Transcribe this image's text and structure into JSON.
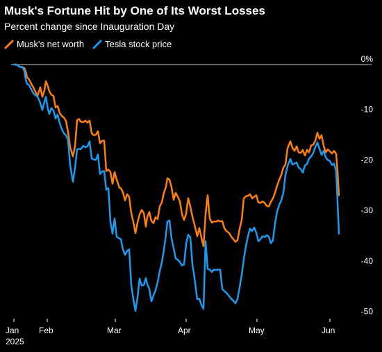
{
  "chart_data": {
    "type": "line",
    "title": "Musk's Fortune Hit by One of Its Worst Losses",
    "subtitle": "Percent change since Inauguration Day",
    "xlabel": "",
    "ylabel": "",
    "x_ticks": [
      "Jan\n2025",
      "Feb",
      "Mar",
      "Apr",
      "May",
      "Jun"
    ],
    "y_ticks": [
      "0%",
      "-10",
      "-20",
      "-30",
      "-40",
      "-50"
    ],
    "y_tick_values": [
      0,
      -10,
      -20,
      -30,
      -40,
      -50
    ],
    "ylim": [
      -52,
      2
    ],
    "grid": false,
    "legend_position": "top-left",
    "series": [
      {
        "name": "Musk's net worth",
        "color": "#ff7f0e",
        "points": [
          [
            20,
            0
          ],
          [
            23,
            0
          ],
          [
            26,
            -0.2
          ],
          [
            29,
            -0.5
          ],
          [
            32,
            -0.5
          ],
          [
            35,
            -0.7
          ],
          [
            37,
            -1.4
          ],
          [
            39,
            -2.5
          ],
          [
            42,
            -3
          ],
          [
            45,
            -3.8
          ],
          [
            48,
            -4.5
          ],
          [
            51,
            -5.4
          ],
          [
            54,
            -6.2
          ],
          [
            58,
            -4.5
          ],
          [
            61,
            -6.4
          ],
          [
            64,
            -5.1
          ],
          [
            66,
            -3.3
          ],
          [
            69,
            -4.3
          ],
          [
            71,
            -5.3
          ],
          [
            74,
            -6
          ],
          [
            77,
            -6.2
          ],
          [
            80,
            -8.5
          ],
          [
            83,
            -8.2
          ],
          [
            86,
            -9.6
          ],
          [
            89,
            -10.2
          ],
          [
            92,
            -10.5
          ],
          [
            95,
            -11.2
          ],
          [
            98,
            -13.4
          ],
          [
            101,
            -16.4
          ],
          [
            105,
            -18.2
          ],
          [
            108,
            -16.2
          ],
          [
            111,
            -11
          ],
          [
            114,
            -10.8
          ],
          [
            116,
            -11.3
          ],
          [
            120,
            -11.4
          ],
          [
            123,
            -11.1
          ],
          [
            126,
            -11.5
          ],
          [
            129,
            -11.1
          ],
          [
            132,
            -13.6
          ],
          [
            135,
            -14
          ],
          [
            138,
            -13.9
          ],
          [
            141,
            -13.2
          ],
          [
            144,
            -15.6
          ],
          [
            147,
            -15.1
          ],
          [
            150,
            -15.1
          ],
          [
            153,
            -21.1
          ],
          [
            156,
            -20.8
          ],
          [
            159,
            -21.3
          ],
          [
            162,
            -23.6
          ],
          [
            165,
            -21.3
          ],
          [
            168,
            -22.8
          ],
          [
            172,
            -24.4
          ],
          [
            174,
            -24.5
          ],
          [
            177,
            -25.3
          ],
          [
            180,
            -26.9
          ],
          [
            183,
            -25.7
          ],
          [
            186,
            -26.2
          ],
          [
            189,
            -29.4
          ],
          [
            192,
            -31.2
          ],
          [
            195,
            -33.4
          ],
          [
            198,
            -31.3
          ],
          [
            201,
            -29.7
          ],
          [
            204,
            -28.8
          ],
          [
            207,
            -29.4
          ],
          [
            210,
            -32.1
          ],
          [
            212,
            -30.2
          ],
          [
            215,
            -29.2
          ],
          [
            218,
            -31
          ],
          [
            221,
            -31.4
          ],
          [
            224,
            -30.2
          ],
          [
            227,
            -30.6
          ],
          [
            230,
            -28.1
          ],
          [
            233,
            -27.3
          ],
          [
            236,
            -25.4
          ],
          [
            239,
            -24.2
          ],
          [
            241,
            -22.5
          ],
          [
            244,
            -22.8
          ],
          [
            247,
            -24.3
          ],
          [
            250,
            -26.8
          ],
          [
            253,
            -25.4
          ],
          [
            256,
            -26.2
          ],
          [
            259,
            -27.1
          ],
          [
            262,
            -29.6
          ],
          [
            265,
            -30.8
          ],
          [
            268,
            -29.5
          ],
          [
            271,
            -26.5
          ],
          [
            274,
            -28.1
          ],
          [
            277,
            -30.1
          ],
          [
            280,
            -31.7
          ],
          [
            284,
            -34
          ],
          [
            287,
            -32.4
          ],
          [
            290,
            -34.3
          ],
          [
            293,
            -36
          ],
          [
            296,
            -29.6
          ],
          [
            299,
            -25.9
          ],
          [
            302,
            -30.5
          ],
          [
            305,
            -31.3
          ],
          [
            308,
            -31.1
          ],
          [
            311,
            -31.1
          ],
          [
            314,
            -30.9
          ],
          [
            317,
            -31.1
          ],
          [
            320,
            -31
          ],
          [
            323,
            -32.4
          ],
          [
            326,
            -33
          ],
          [
            330,
            -33.4
          ],
          [
            333,
            -34.1
          ],
          [
            336,
            -34.6
          ],
          [
            339,
            -35.1
          ],
          [
            342,
            -34.8
          ],
          [
            345,
            -32.5
          ],
          [
            348,
            -30.8
          ],
          [
            351,
            -26.5
          ],
          [
            354,
            -26.1
          ],
          [
            357,
            -26
          ],
          [
            360,
            -25.7
          ],
          [
            363,
            -26.5
          ],
          [
            366,
            -26.2
          ],
          [
            369,
            -25.9
          ],
          [
            372,
            -27.3
          ],
          [
            375,
            -27.4
          ],
          [
            378,
            -27.1
          ],
          [
            381,
            -27.4
          ],
          [
            384,
            -28
          ],
          [
            387,
            -28.1
          ],
          [
            390,
            -27.2
          ],
          [
            393,
            -26.5
          ],
          [
            396,
            -25.4
          ],
          [
            399,
            -24
          ],
          [
            402,
            -22.8
          ],
          [
            405,
            -21.9
          ],
          [
            408,
            -20.4
          ],
          [
            411,
            -19.8
          ],
          [
            414,
            -16.6
          ],
          [
            418,
            -15.2
          ],
          [
            421,
            -16.5
          ],
          [
            424,
            -17.1
          ],
          [
            427,
            -16.2
          ],
          [
            430,
            -17.4
          ],
          [
            433,
            -17.5
          ],
          [
            436,
            -16.9
          ],
          [
            439,
            -18
          ],
          [
            442,
            -16.9
          ],
          [
            445,
            -17.4
          ],
          [
            448,
            -16
          ],
          [
            451,
            -15.9
          ],
          [
            454,
            -15.1
          ],
          [
            457,
            -13.5
          ],
          [
            460,
            -14.7
          ],
          [
            463,
            -14
          ],
          [
            466,
            -16.1
          ],
          [
            469,
            -17.4
          ],
          [
            472,
            -16.8
          ],
          [
            475,
            -17.2
          ],
          [
            478,
            -17.6
          ],
          [
            481,
            -17.1
          ],
          [
            484,
            -17.7
          ],
          [
            486,
            -21.2
          ],
          [
            488,
            -25.9
          ]
        ]
      },
      {
        "name": "Tesla stock price",
        "color": "#1a9bf0",
        "points": [
          [
            20,
            0
          ],
          [
            23,
            0
          ],
          [
            26,
            -0.2
          ],
          [
            29,
            -0.5
          ],
          [
            32,
            -0.5
          ],
          [
            35,
            -1.2
          ],
          [
            37,
            -2.9
          ],
          [
            39,
            -3.8
          ],
          [
            42,
            -4.1
          ],
          [
            45,
            -4.9
          ],
          [
            48,
            -5.7
          ],
          [
            51,
            -6.1
          ],
          [
            54,
            -6.3
          ],
          [
            58,
            -7.6
          ],
          [
            61,
            -9
          ],
          [
            64,
            -7.4
          ],
          [
            66,
            -6.4
          ],
          [
            69,
            -8.8
          ],
          [
            71,
            -9.8
          ],
          [
            74,
            -8.6
          ],
          [
            77,
            -9.1
          ],
          [
            80,
            -10.7
          ],
          [
            83,
            -9.9
          ],
          [
            86,
            -11.6
          ],
          [
            89,
            -12.8
          ],
          [
            92,
            -13.6
          ],
          [
            95,
            -14
          ],
          [
            98,
            -15
          ],
          [
            101,
            -19.9
          ],
          [
            105,
            -23.2
          ],
          [
            108,
            -20.5
          ],
          [
            111,
            -16.8
          ],
          [
            114,
            -16.7
          ],
          [
            116,
            -16.8
          ],
          [
            120,
            -16.1
          ],
          [
            123,
            -16.4
          ],
          [
            126,
            -16.2
          ],
          [
            129,
            -15.2
          ],
          [
            132,
            -18.6
          ],
          [
            135,
            -18.8
          ],
          [
            138,
            -18.9
          ],
          [
            141,
            -17.8
          ],
          [
            144,
            -21.7
          ],
          [
            147,
            -21.2
          ],
          [
            150,
            -21.1
          ],
          [
            153,
            -24.8
          ],
          [
            156,
            -24.5
          ],
          [
            159,
            -31.1
          ],
          [
            162,
            -33.5
          ],
          [
            165,
            -30.5
          ],
          [
            168,
            -34.1
          ],
          [
            172,
            -34.5
          ],
          [
            174,
            -34.6
          ],
          [
            177,
            -36.6
          ],
          [
            180,
            -37.7
          ],
          [
            183,
            -36.9
          ],
          [
            186,
            -36.6
          ],
          [
            189,
            -43.7
          ],
          [
            192,
            -46.5
          ],
          [
            195,
            -48.8
          ],
          [
            198,
            -46.1
          ],
          [
            201,
            -42.4
          ],
          [
            204,
            -43.8
          ],
          [
            207,
            -43.7
          ],
          [
            210,
            -42.3
          ],
          [
            212,
            -43.5
          ],
          [
            215,
            -44.4
          ],
          [
            218,
            -46.9
          ],
          [
            221,
            -45.7
          ],
          [
            224,
            -44.7
          ],
          [
            227,
            -43.1
          ],
          [
            230,
            -40.9
          ],
          [
            233,
            -39.2
          ],
          [
            236,
            -36.7
          ],
          [
            239,
            -33.7
          ],
          [
            241,
            -31.1
          ],
          [
            244,
            -30.9
          ],
          [
            247,
            -34.4
          ],
          [
            250,
            -36.4
          ],
          [
            253,
            -38.4
          ],
          [
            256,
            -38.7
          ],
          [
            259,
            -39.1
          ],
          [
            262,
            -39.8
          ],
          [
            265,
            -39.6
          ],
          [
            268,
            -35.5
          ],
          [
            271,
            -33.7
          ],
          [
            274,
            -34.2
          ],
          [
            277,
            -39.5
          ],
          [
            280,
            -42.2
          ],
          [
            284,
            -46.5
          ],
          [
            287,
            -46.4
          ],
          [
            290,
            -47.6
          ],
          [
            293,
            -48.4
          ],
          [
            296,
            -35
          ],
          [
            299,
            -40.5
          ],
          [
            302,
            -40.6
          ],
          [
            305,
            -41.1
          ],
          [
            308,
            -40.6
          ],
          [
            311,
            -40.7
          ],
          [
            314,
            -40.6
          ],
          [
            317,
            -40.6
          ],
          [
            320,
            -44.4
          ],
          [
            323,
            -44.9
          ],
          [
            326,
            -45.2
          ],
          [
            330,
            -45.9
          ],
          [
            333,
            -46.4
          ],
          [
            336,
            -46.8
          ],
          [
            339,
            -47.3
          ],
          [
            342,
            -46.4
          ],
          [
            345,
            -44.1
          ],
          [
            348,
            -41.7
          ],
          [
            351,
            -38.6
          ],
          [
            354,
            -36
          ],
          [
            357,
            -34
          ],
          [
            360,
            -32.5
          ],
          [
            363,
            -33
          ],
          [
            366,
            -32.3
          ],
          [
            369,
            -33.3
          ],
          [
            372,
            -35
          ],
          [
            375,
            -34.6
          ],
          [
            378,
            -34
          ],
          [
            381,
            -34.2
          ],
          [
            384,
            -33.8
          ],
          [
            387,
            -34.1
          ],
          [
            390,
            -35.4
          ],
          [
            393,
            -34.8
          ],
          [
            396,
            -31.5
          ],
          [
            399,
            -29.1
          ],
          [
            402,
            -27.8
          ],
          [
            405,
            -26.9
          ],
          [
            408,
            -25.4
          ],
          [
            411,
            -21.9
          ],
          [
            414,
            -20.1
          ],
          [
            418,
            -18.7
          ],
          [
            421,
            -19.8
          ],
          [
            424,
            -19.6
          ],
          [
            427,
            -19.4
          ],
          [
            430,
            -20.4
          ],
          [
            433,
            -20.7
          ],
          [
            436,
            -21.4
          ],
          [
            439,
            -20
          ],
          [
            442,
            -19.7
          ],
          [
            445,
            -18.6
          ],
          [
            448,
            -18.2
          ],
          [
            451,
            -17.5
          ],
          [
            454,
            -16.4
          ],
          [
            457,
            -15.4
          ],
          [
            460,
            -16.7
          ],
          [
            463,
            -17.9
          ],
          [
            466,
            -17.1
          ],
          [
            469,
            -18.4
          ],
          [
            472,
            -18.9
          ],
          [
            475,
            -19.1
          ],
          [
            478,
            -19.9
          ],
          [
            481,
            -19.6
          ],
          [
            484,
            -21.1
          ],
          [
            486,
            -27.3
          ],
          [
            488,
            -33.5
          ]
        ]
      }
    ]
  }
}
